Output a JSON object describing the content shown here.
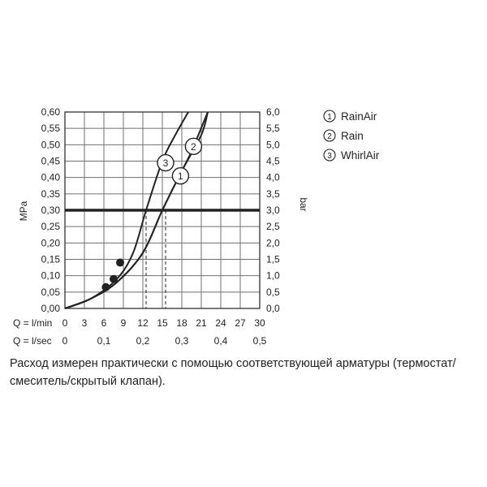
{
  "chart_data": {
    "type": "line",
    "y_left": {
      "label": "MPa",
      "range": [
        0,
        0.6
      ],
      "ticks": [
        "0,00",
        "0,05",
        "0,10",
        "0,15",
        "0,20",
        "0,25",
        "0,30",
        "0,35",
        "0,40",
        "0,45",
        "0,50",
        "0,55",
        "0,60"
      ]
    },
    "y_right": {
      "label": "bar",
      "range": [
        0,
        6
      ],
      "ticks": [
        "0,0",
        "0,5",
        "1,0",
        "1,5",
        "2,0",
        "2,5",
        "3,0",
        "3,5",
        "4,0",
        "4,5",
        "5,0",
        "5,5",
        "6,0"
      ]
    },
    "x_lmin": {
      "label": "Q = l/min",
      "range": [
        0,
        30
      ],
      "ticks": [
        "0",
        "3",
        "6",
        "9",
        "12",
        "15",
        "18",
        "21",
        "24",
        "27",
        "30"
      ]
    },
    "x_lsec": {
      "label": "Q = l/sec",
      "ticks": [
        "0",
        "0,1",
        "0,2",
        "0,3",
        "0,4",
        "0,5"
      ],
      "values": [
        0,
        6,
        12,
        18,
        24,
        30
      ]
    },
    "grid": true,
    "reference_line": {
      "y": 0.3
    },
    "series": [
      {
        "name": "RainAir",
        "marker": "1",
        "points": [
          [
            0,
            0
          ],
          [
            4,
            0.03
          ],
          [
            8,
            0.08
          ],
          [
            12,
            0.17
          ],
          [
            15,
            0.3
          ],
          [
            18,
            0.42
          ],
          [
            19.5,
            0.48
          ],
          [
            22,
            0.6
          ]
        ],
        "start_point": [
          8.5,
          0.14
        ]
      },
      {
        "name": "Rain",
        "marker": "2",
        "points": [
          [
            0,
            0
          ],
          [
            4,
            0.03
          ],
          [
            8,
            0.08
          ],
          [
            12,
            0.17
          ],
          [
            15,
            0.3
          ],
          [
            18,
            0.42
          ],
          [
            21,
            0.53
          ],
          [
            22,
            0.6
          ]
        ],
        "start_point": [
          7.5,
          0.09
        ]
      },
      {
        "name": "WhirlAir",
        "marker": "3",
        "points": [
          [
            0,
            0
          ],
          [
            4,
            0.03
          ],
          [
            8,
            0.09
          ],
          [
            10.5,
            0.17
          ],
          [
            12.5,
            0.3
          ],
          [
            15,
            0.45
          ],
          [
            17,
            0.53
          ],
          [
            19,
            0.6
          ]
        ],
        "start_point": [
          6.3,
          0.065
        ]
      }
    ],
    "flow_at_reference": [
      12.5,
      15.5
    ],
    "legend": {
      "position": "top-right",
      "items": [
        {
          "marker": "1",
          "label": "RainAir"
        },
        {
          "marker": "2",
          "label": "Rain"
        },
        {
          "marker": "3",
          "label": "WhirlAir"
        }
      ]
    }
  },
  "caption": {
    "line1": "Расход измерен практически с помощью соответствующей арматуры (термостат/",
    "line2": "смеситель/скрытый клапан)."
  },
  "colors": {
    "ink": "#222222",
    "grid": "#6f6f6f"
  }
}
